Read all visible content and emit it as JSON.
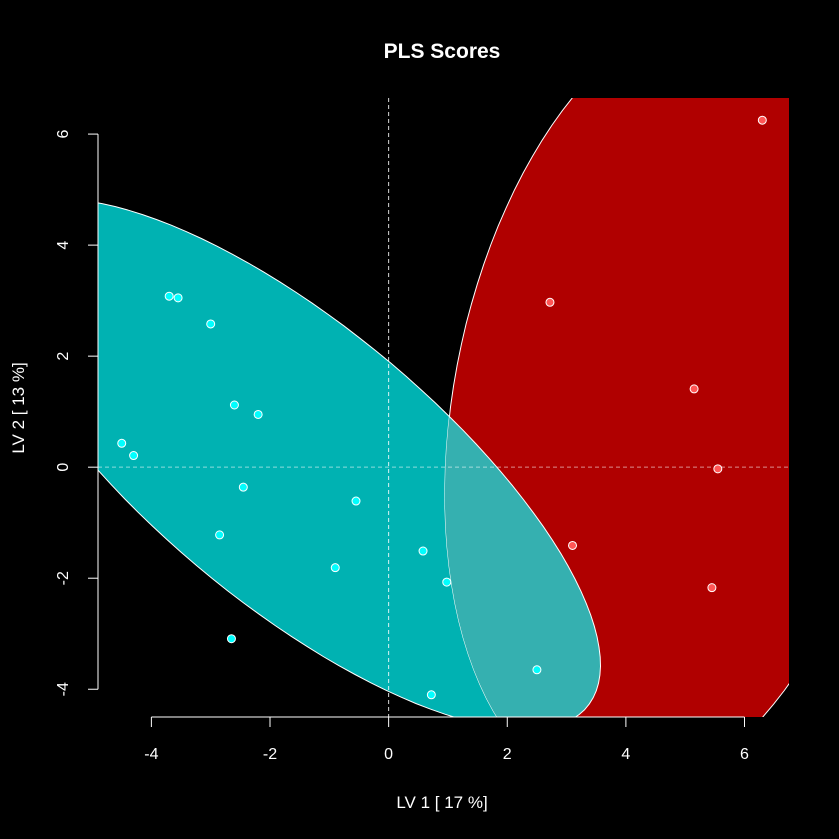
{
  "chart_data": {
    "type": "scatter",
    "title": "PLS Scores",
    "xlabel": "LV 1 [ 17 %]",
    "ylabel": "LV 2 [ 13 %]",
    "xlim": [
      -4.9,
      6.75
    ],
    "ylim": [
      -4.5,
      6.65
    ],
    "x_ticks": [
      -4,
      -2,
      0,
      2,
      4,
      6
    ],
    "y_ticks": [
      -4,
      -2,
      0,
      2,
      4,
      6
    ],
    "x_tick_labels": [
      "-4",
      "-2",
      "0",
      "2",
      "4",
      "6"
    ],
    "y_tick_labels": [
      "-4",
      "-2",
      "0",
      "2",
      "4",
      "6"
    ],
    "grid": false,
    "reference_lines": [
      {
        "axis": "x",
        "value": 0
      },
      {
        "axis": "y",
        "value": 0
      }
    ],
    "ellipse_colors": [
      "#00b2b2",
      "#b00000"
    ],
    "ellipse_overlap_color": "#35b0b0",
    "series": [
      {
        "color": "#00ffff",
        "ellipse": {
          "center": [
            -1.6,
            0.05
          ],
          "semi_major": 6.6,
          "semi_minor": 2.45,
          "angle_deg": -42
        },
        "points": [
          {
            "x": -3.7,
            "y": 3.08
          },
          {
            "x": -3.55,
            "y": 3.05
          },
          {
            "x": -3.0,
            "y": 2.58
          },
          {
            "x": -2.6,
            "y": 1.12
          },
          {
            "x": -2.2,
            "y": 0.95
          },
          {
            "x": -4.5,
            "y": 0.43
          },
          {
            "x": -4.3,
            "y": 0.21
          },
          {
            "x": -2.45,
            "y": -0.36
          },
          {
            "x": -0.55,
            "y": -0.61
          },
          {
            "x": -2.85,
            "y": -1.22
          },
          {
            "x": -0.9,
            "y": -1.81
          },
          {
            "x": 0.58,
            "y": -1.51
          },
          {
            "x": 0.98,
            "y": -2.07
          },
          {
            "x": -2.65,
            "y": -3.09
          },
          {
            "x": 2.5,
            "y": -3.65
          },
          {
            "x": 0.72,
            "y": -4.1
          }
        ]
      },
      {
        "color": "#ff5555",
        "ellipse": {
          "center": [
            4.8,
            1.2
          ],
          "semi_major": 7.2,
          "semi_minor": 3.7,
          "angle_deg": 80
        },
        "points": [
          {
            "x": 6.3,
            "y": 6.25
          },
          {
            "x": 2.72,
            "y": 2.97
          },
          {
            "x": 5.15,
            "y": 1.41
          },
          {
            "x": 5.55,
            "y": -0.03
          },
          {
            "x": 3.1,
            "y": -1.41
          },
          {
            "x": 5.45,
            "y": -2.17
          }
        ]
      }
    ]
  }
}
